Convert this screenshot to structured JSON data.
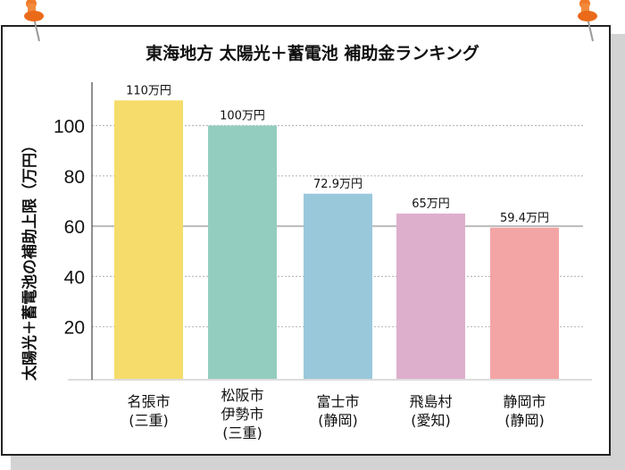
{
  "chart_data": {
    "type": "bar",
    "title": "東海地方 太陽光＋蓄電池 補助金ランキング",
    "ylabel": "太陽光＋蓄電池の補助上限（万円）",
    "xlabel": "",
    "ylim": [
      0,
      110
    ],
    "yticks": [
      20,
      40,
      60,
      80,
      100
    ],
    "grid": true,
    "categories": [
      [
        "名張市",
        "(三重)"
      ],
      [
        "松阪市",
        "伊勢市",
        "(三重)"
      ],
      [
        "富士市",
        "(静岡)"
      ],
      [
        "飛島村",
        "(愛知)"
      ],
      [
        "静岡市",
        "(静岡)"
      ]
    ],
    "values": [
      110,
      100,
      72.9,
      65,
      59.4
    ],
    "data_labels": [
      "110万円",
      "100万円",
      "72.9万円",
      "65万円",
      "59.4万円"
    ],
    "colors": [
      "#f6dc6a",
      "#93cdbf",
      "#99c8db",
      "#deafcd",
      "#f3a5a5"
    ]
  },
  "decor": {
    "pin_color": "#f07a2a",
    "pin_icons": [
      "pushpin-icon",
      "pushpin-icon"
    ]
  }
}
